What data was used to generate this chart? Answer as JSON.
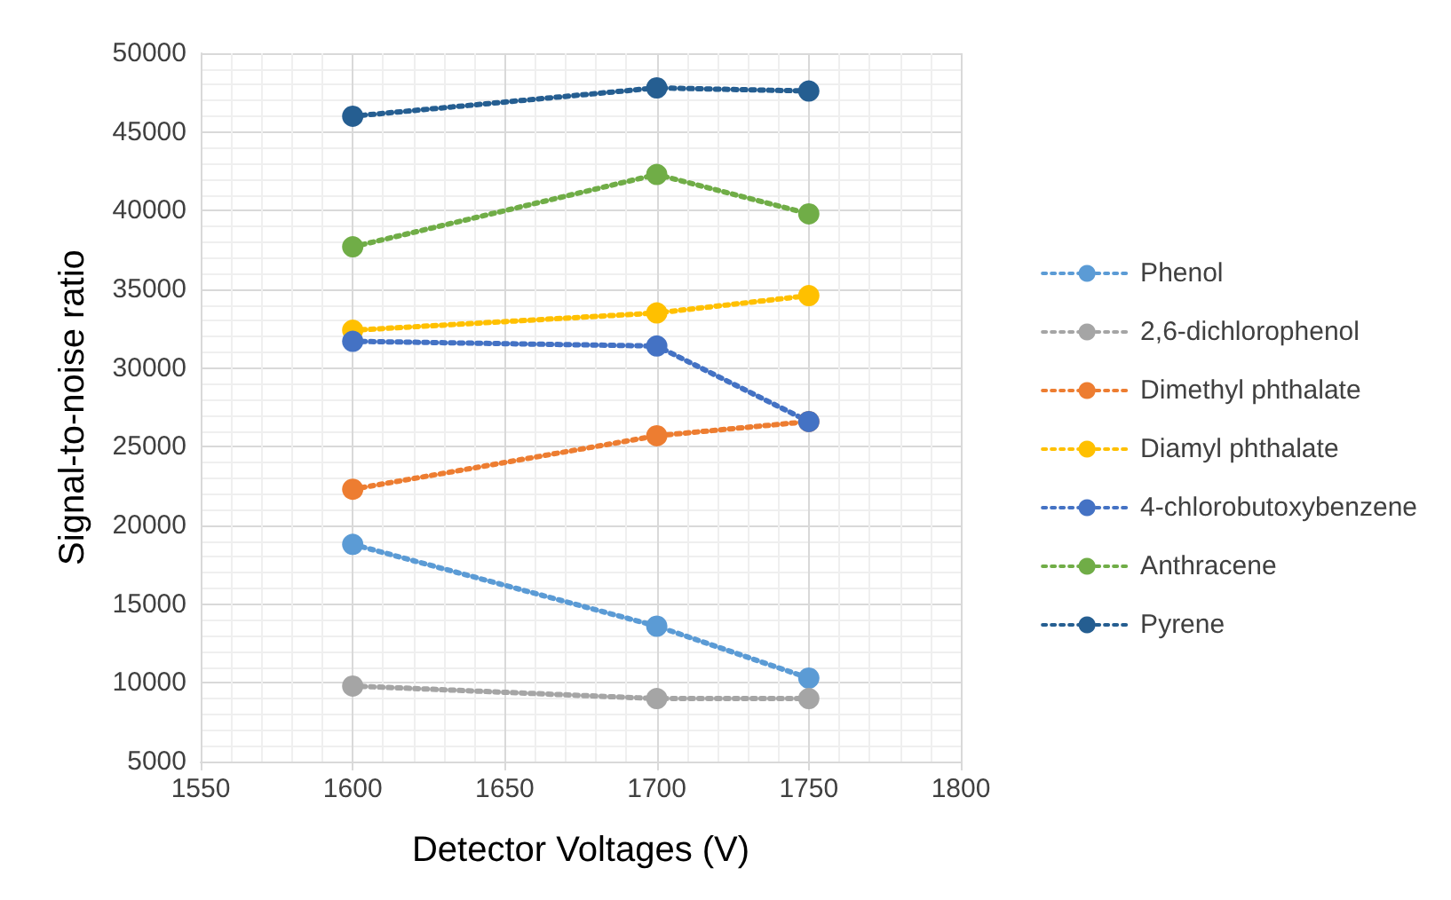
{
  "chart_data": {
    "type": "line",
    "xlabel": "Detector Voltages (V)",
    "ylabel": "Signal-to-noise ratio",
    "x": [
      1600,
      1700,
      1750
    ],
    "xlim": [
      1550,
      1800
    ],
    "xticks": [
      1550,
      1600,
      1650,
      1700,
      1750,
      1800
    ],
    "ylim": [
      5000,
      50000
    ],
    "yticks": [
      5000,
      10000,
      15000,
      20000,
      25000,
      30000,
      35000,
      40000,
      45000,
      50000
    ],
    "grid": true,
    "legend": "right",
    "marker": "circle",
    "line_style": "dotted",
    "series": [
      {
        "name": "Phenol",
        "color": "#5b9bd5",
        "values": [
          18800,
          13600,
          10300
        ]
      },
      {
        "name": "2,6-dichlorophenol",
        "color": "#a5a5a5",
        "values": [
          9800,
          9000,
          9000
        ]
      },
      {
        "name": "Dimethyl phthalate",
        "color": "#ed7d31",
        "values": [
          22300,
          25700,
          26600
        ]
      },
      {
        "name": "Diamyl phthalate",
        "color": "#ffc000",
        "values": [
          32400,
          33500,
          34600
        ]
      },
      {
        "name": "4-chlorobutoxybenzene",
        "color": "#4472c4",
        "values": [
          31700,
          31400,
          26600
        ]
      },
      {
        "name": "Anthracene",
        "color": "#70ad47",
        "values": [
          37700,
          42300,
          39800
        ]
      },
      {
        "name": "Pyrene",
        "color": "#255e91",
        "values": [
          46000,
          47800,
          47600
        ]
      }
    ]
  }
}
